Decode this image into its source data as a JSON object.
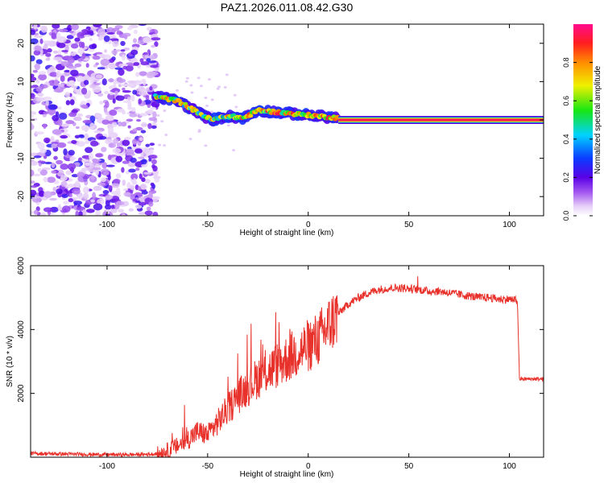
{
  "figure": {
    "title": "PAZ1.2026.011.08.42.G30"
  },
  "colors": {
    "snr_line": "#e8312a",
    "axis": "#000000",
    "background": "#ffffff"
  },
  "chart_data": [
    {
      "type": "heatmap",
      "title": "PAZ1.2026.011.08.42.G30",
      "xlabel": "Height of straight line (km)",
      "ylabel": "Frequency (Hz)",
      "xlim": [
        -138,
        117
      ],
      "ylim": [
        -25,
        25
      ],
      "xticks": [
        -100,
        -50,
        0,
        50,
        100
      ],
      "yticks": [
        -20,
        -10,
        0,
        10,
        20
      ],
      "colorbar": {
        "label": "Normalized spectral amplitude",
        "range": [
          0,
          1
        ],
        "ticks": [
          0.0,
          0.2,
          0.4,
          0.6,
          0.8
        ],
        "colormap": "rainbow (white-lilac at 0, violet, blue, cyan, green, yellow, orange, red, magenta at 1)"
      },
      "regions": [
        {
          "name": "noise",
          "x_range": [
            -138,
            -75
          ],
          "freq_range": [
            -25,
            25
          ],
          "amplitude": "0.05-0.3, scattered"
        },
        {
          "name": "wandering signal",
          "x_range": [
            -75,
            15
          ],
          "freq_center": [
            [
              -75,
              6
            ],
            [
              -65,
              5
            ],
            [
              -55,
              2
            ],
            [
              -48,
              0
            ],
            [
              -40,
              1
            ],
            [
              -32,
              0.5
            ],
            [
              -25,
              2.5
            ],
            [
              -15,
              2
            ],
            [
              -5,
              1.5
            ],
            [
              5,
              1
            ],
            [
              15,
              0.5
            ]
          ],
          "amplitude": "0.3-0.9"
        },
        {
          "name": "stable carrier",
          "x_range": [
            15,
            117
          ],
          "freq_center": 0,
          "amplitude": "0.9-1.0"
        }
      ]
    },
    {
      "type": "line",
      "xlabel": "Height of straight line (km)",
      "ylabel": "SNR (10 * v/v)",
      "xlim": [
        -138,
        117
      ],
      "ylim": [
        0,
        6000
      ],
      "xticks": [
        -100,
        -50,
        0,
        50,
        100
      ],
      "yticks": [
        2000,
        4000,
        6000
      ],
      "series": [
        {
          "name": "SNR",
          "color": "#e8312a",
          "x": [
            -138,
            -120,
            -100,
            -90,
            -80,
            -75,
            -70,
            -65,
            -60,
            -55,
            -50,
            -45,
            -40,
            -35,
            -30,
            -25,
            -20,
            -15,
            -10,
            -5,
            0,
            5,
            10,
            15,
            20,
            25,
            30,
            35,
            40,
            45,
            50,
            55,
            60,
            65,
            70,
            75,
            80,
            85,
            90,
            95,
            100,
            104,
            105,
            110,
            117
          ],
          "y": [
            120,
            100,
            80,
            80,
            90,
            110,
            200,
            350,
            550,
            800,
            700,
            1100,
            1500,
            1900,
            2200,
            2500,
            2700,
            2900,
            3100,
            3300,
            3500,
            3700,
            4100,
            4500,
            4800,
            5000,
            5150,
            5250,
            5300,
            5300,
            5280,
            5250,
            5200,
            5200,
            5150,
            5100,
            5050,
            5000,
            5000,
            4950,
            4950,
            4900,
            2450,
            2450,
            2450
          ]
        }
      ]
    }
  ]
}
